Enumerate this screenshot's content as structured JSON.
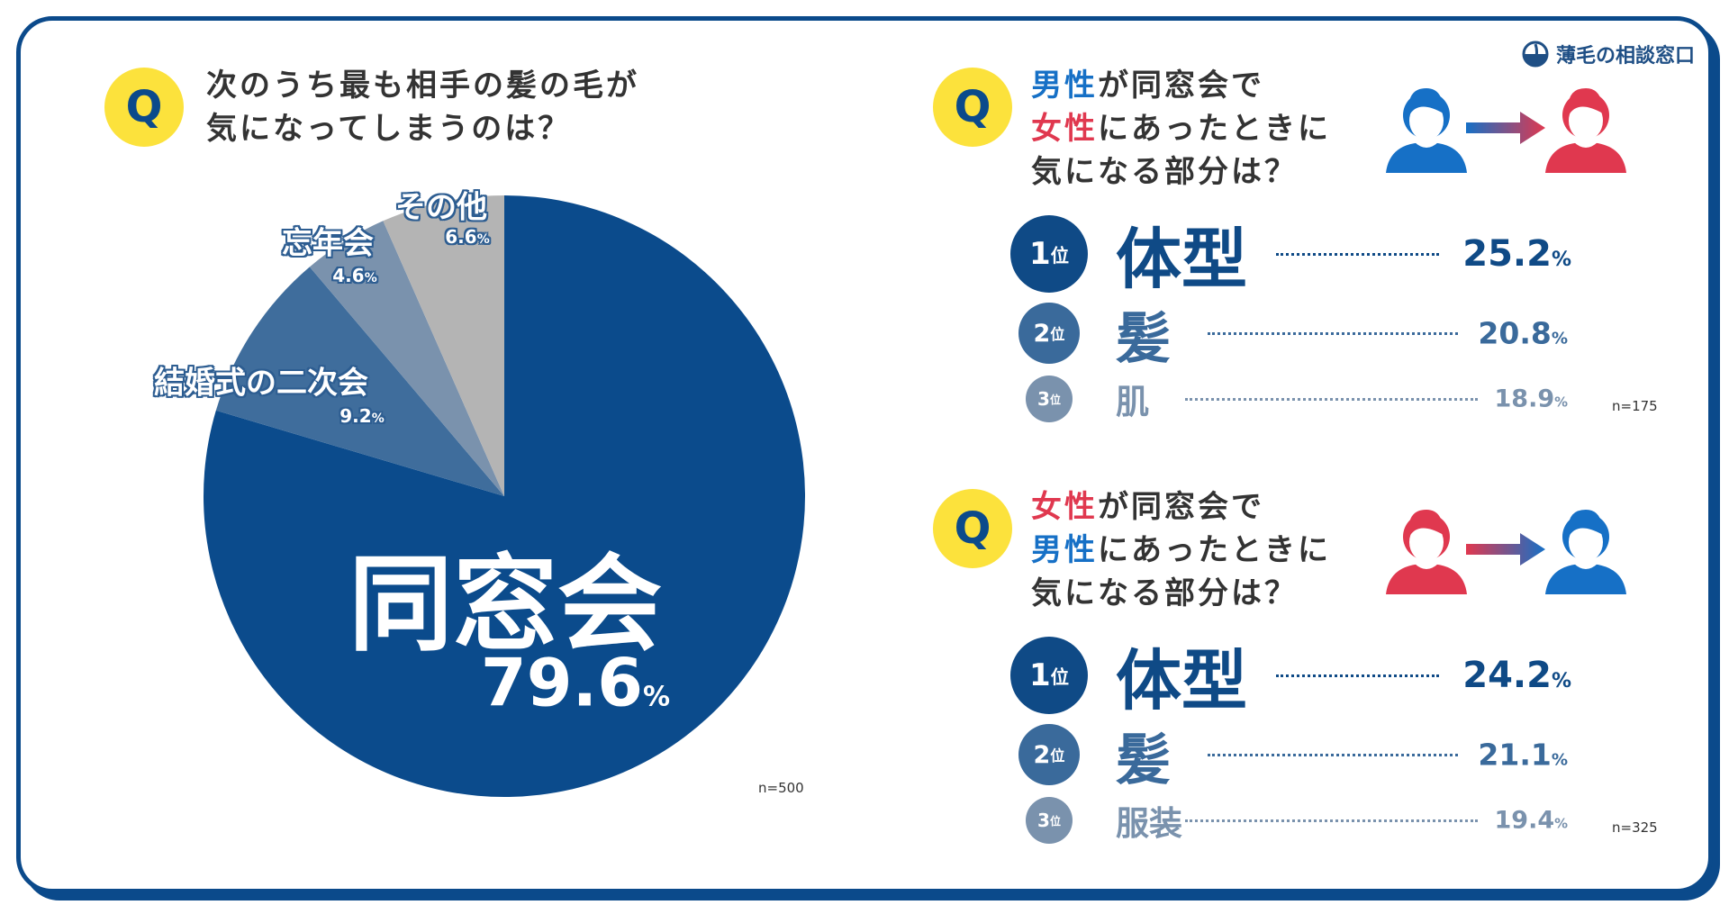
{
  "logo": {
    "text": "薄毛の相談窓口"
  },
  "left": {
    "q": "Q",
    "line1": "次のうち最も相手の髪の毛が",
    "line2": "気になってしまうのは？",
    "n": "n=500"
  },
  "chart_data": {
    "type": "pie",
    "start": "top",
    "direction": "clockwise",
    "categories": [
      "同窓会",
      "結婚式の二次会",
      "忘年会",
      "その他"
    ],
    "values": [
      79.6,
      9.2,
      4.6,
      6.6
    ],
    "labels": [
      "79.6",
      "9.2",
      "4.6",
      "6.6"
    ],
    "unit": "%",
    "colors": [
      "#0b4b8c",
      "#3f6d9c",
      "#7a92ad",
      "#b4b4b4"
    ]
  },
  "q1": {
    "q": "Q",
    "l1a": "男性",
    "l1b": "が同窓会で",
    "l2a": "女性",
    "l2b": "にあったときに",
    "l3": "気になる部分は？",
    "n": "n=175",
    "ranks": [
      {
        "rank": "1",
        "suffix": "位",
        "item": "体型",
        "value": "25.2",
        "unit": "%"
      },
      {
        "rank": "2",
        "suffix": "位",
        "item": "髪",
        "value": "20.8",
        "unit": "%"
      },
      {
        "rank": "3",
        "suffix": "位",
        "item": "肌",
        "value": "18.9",
        "unit": "%"
      }
    ]
  },
  "q2": {
    "q": "Q",
    "l1a": "女性",
    "l1b": "が同窓会で",
    "l2a": "男性",
    "l2b": "にあったときに",
    "l3": "気になる部分は？",
    "n": "n=325",
    "ranks": [
      {
        "rank": "1",
        "suffix": "位",
        "item": "体型",
        "value": "24.2",
        "unit": "%"
      },
      {
        "rank": "2",
        "suffix": "位",
        "item": "髪",
        "value": "21.1",
        "unit": "%"
      },
      {
        "rank": "3",
        "suffix": "位",
        "item": "服装",
        "value": "19.4",
        "unit": "%"
      }
    ]
  },
  "colors": {
    "male": "#1670c6",
    "female": "#e0384f",
    "navy": "#0b4a8b",
    "yellow": "#fce23c"
  }
}
